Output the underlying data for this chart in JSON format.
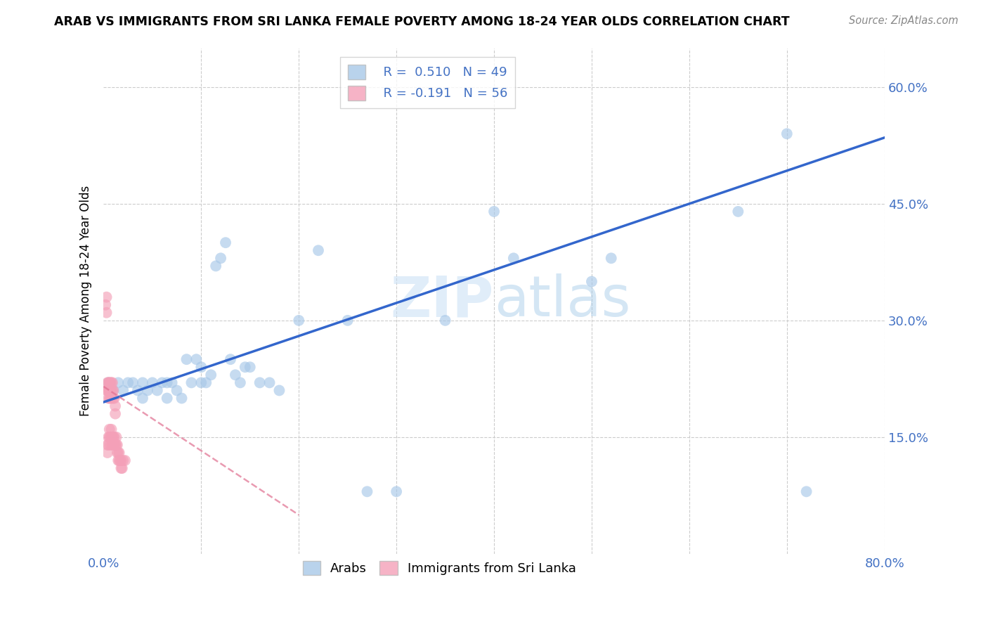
{
  "title": "ARAB VS IMMIGRANTS FROM SRI LANKA FEMALE POVERTY AMONG 18-24 YEAR OLDS CORRELATION CHART",
  "source": "Source: ZipAtlas.com",
  "ylabel": "Female Poverty Among 18-24 Year Olds",
  "xlim": [
    0.0,
    0.8
  ],
  "ylim": [
    0.0,
    0.65
  ],
  "ytick_positions": [
    0.0,
    0.15,
    0.3,
    0.45,
    0.6
  ],
  "yticklabels_right": [
    "",
    "15.0%",
    "30.0%",
    "45.0%",
    "60.0%"
  ],
  "legend_r_arab": "0.510",
  "legend_n_arab": "49",
  "legend_r_srilanka": "-0.191",
  "legend_n_srilanka": "56",
  "arab_color": "#a8c8e8",
  "srilanka_color": "#f4a0b8",
  "arab_line_color": "#3366cc",
  "srilanka_line_color": "#e07090",
  "watermark": "ZIPatlas",
  "arab_x": [
    0.005,
    0.01,
    0.015,
    0.02,
    0.025,
    0.03,
    0.035,
    0.04,
    0.04,
    0.045,
    0.05,
    0.055,
    0.06,
    0.065,
    0.065,
    0.07,
    0.075,
    0.08,
    0.085,
    0.09,
    0.095,
    0.1,
    0.1,
    0.105,
    0.11,
    0.115,
    0.12,
    0.125,
    0.13,
    0.135,
    0.14,
    0.145,
    0.15,
    0.16,
    0.17,
    0.18,
    0.2,
    0.22,
    0.25,
    0.27,
    0.3,
    0.35,
    0.4,
    0.42,
    0.5,
    0.52,
    0.65,
    0.7,
    0.72
  ],
  "arab_y": [
    0.22,
    0.21,
    0.22,
    0.21,
    0.22,
    0.22,
    0.21,
    0.22,
    0.2,
    0.21,
    0.22,
    0.21,
    0.22,
    0.2,
    0.22,
    0.22,
    0.21,
    0.2,
    0.25,
    0.22,
    0.25,
    0.22,
    0.24,
    0.22,
    0.23,
    0.37,
    0.38,
    0.4,
    0.25,
    0.23,
    0.22,
    0.24,
    0.24,
    0.22,
    0.22,
    0.21,
    0.3,
    0.39,
    0.3,
    0.08,
    0.08,
    0.3,
    0.44,
    0.38,
    0.35,
    0.38,
    0.44,
    0.54,
    0.08
  ],
  "srilanka_x": [
    0.002,
    0.003,
    0.003,
    0.003,
    0.004,
    0.004,
    0.004,
    0.004,
    0.005,
    0.005,
    0.005,
    0.005,
    0.005,
    0.006,
    0.006,
    0.006,
    0.006,
    0.006,
    0.007,
    0.007,
    0.007,
    0.007,
    0.007,
    0.008,
    0.008,
    0.008,
    0.008,
    0.008,
    0.009,
    0.009,
    0.009,
    0.009,
    0.01,
    0.01,
    0.01,
    0.01,
    0.011,
    0.011,
    0.011,
    0.012,
    0.012,
    0.012,
    0.013,
    0.013,
    0.014,
    0.014,
    0.015,
    0.015,
    0.016,
    0.016,
    0.017,
    0.018,
    0.018,
    0.019,
    0.02,
    0.022
  ],
  "srilanka_y": [
    0.32,
    0.33,
    0.31,
    0.21,
    0.22,
    0.21,
    0.13,
    0.14,
    0.2,
    0.21,
    0.22,
    0.14,
    0.15,
    0.22,
    0.21,
    0.2,
    0.15,
    0.16,
    0.22,
    0.21,
    0.2,
    0.14,
    0.15,
    0.22,
    0.21,
    0.2,
    0.15,
    0.16,
    0.22,
    0.21,
    0.14,
    0.15,
    0.2,
    0.21,
    0.14,
    0.15,
    0.2,
    0.14,
    0.15,
    0.18,
    0.19,
    0.14,
    0.14,
    0.15,
    0.13,
    0.14,
    0.12,
    0.13,
    0.12,
    0.13,
    0.12,
    0.11,
    0.12,
    0.11,
    0.12,
    0.12
  ],
  "arab_line_x0": 0.0,
  "arab_line_y0": 0.195,
  "arab_line_x1": 0.8,
  "arab_line_y1": 0.535,
  "sl_line_x0": 0.0,
  "sl_line_y0": 0.215,
  "sl_line_x1": 0.2,
  "sl_line_y1": 0.05
}
